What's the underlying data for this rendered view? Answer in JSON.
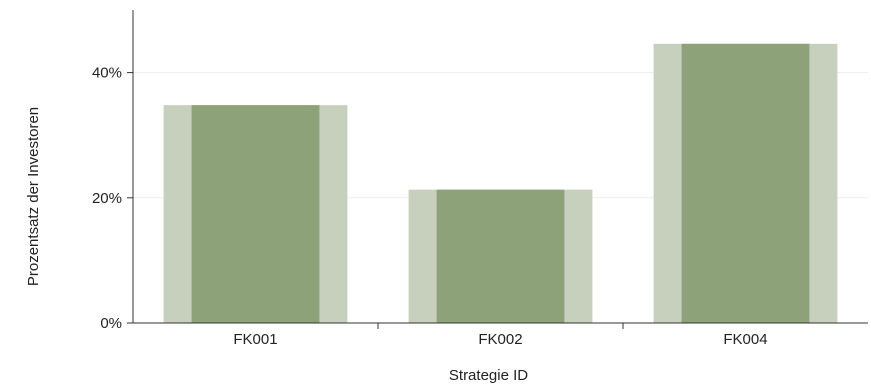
{
  "chart_data": {
    "type": "bar",
    "title": "",
    "xlabel": "Strategie ID",
    "ylabel": "Prozentsatz der Investoren",
    "categories": [
      "FK001",
      "FK002",
      "FK004"
    ],
    "series": [
      {
        "values": [
          34.8,
          21.3,
          44.6
        ]
      }
    ],
    "ylim": [
      0,
      50
    ],
    "yticks": [
      0,
      20,
      40
    ],
    "ytick_labels": [
      "0%",
      "20%",
      "40%"
    ],
    "grid": "horizontal",
    "legend": "none"
  },
  "colors": {
    "bar_outer": "#c7cfbd",
    "bar_inner": "#8da278",
    "grid": "#eeeeee",
    "axis": "#333333",
    "text": "#222222"
  }
}
